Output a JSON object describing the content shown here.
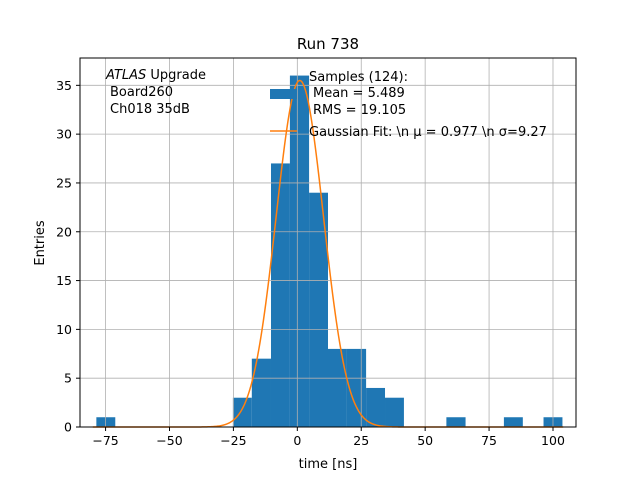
{
  "chart_data": {
    "type": "bar",
    "title": "Run 738",
    "xlabel": "time [ns]",
    "ylabel": "Entries",
    "xlim": [
      -85,
      109
    ],
    "ylim": [
      0,
      37.8
    ],
    "grid": true,
    "xticks": [
      -75,
      -50,
      -25,
      0,
      25,
      50,
      75,
      100
    ],
    "yticks": [
      0,
      5,
      10,
      15,
      20,
      25,
      30,
      35
    ],
    "xtick_labels": [
      "−75",
      "−50",
      "−25",
      "0",
      "25",
      "50",
      "75",
      "100"
    ],
    "ytick_labels": [
      "0",
      "5",
      "10",
      "15",
      "20",
      "25",
      "30",
      "35"
    ],
    "annotation": {
      "prefix": "ATLAS",
      "suffix": " Upgrade",
      "line2": "Board260",
      "line3": "Ch018 35dB"
    },
    "legend": {
      "placement": "top-right",
      "histogram_lines": [
        "Samples (124):",
        "Mean = 5.489",
        "RMS = 19.105"
      ],
      "fit_label": "Gaussian Fit: \\n μ = 0.977 \\n σ=9.27"
    },
    "histogram": {
      "name": "Samples",
      "color": "#1f77b4",
      "bins": [
        {
          "x0": -78.6,
          "x1": -71.2,
          "count": 1
        },
        {
          "x0": -25.2,
          "x1": -17.8,
          "count": 3
        },
        {
          "x0": -17.8,
          "x1": -10.3,
          "count": 7
        },
        {
          "x0": -10.3,
          "x1": -2.9,
          "count": 27
        },
        {
          "x0": -2.9,
          "x1": 4.6,
          "count": 36
        },
        {
          "x0": 4.6,
          "x1": 12.0,
          "count": 24
        },
        {
          "x0": 12.0,
          "x1": 19.4,
          "count": 8
        },
        {
          "x0": 19.4,
          "x1": 26.9,
          "count": 8
        },
        {
          "x0": 26.9,
          "x1": 34.3,
          "count": 4
        },
        {
          "x0": 34.3,
          "x1": 41.7,
          "count": 3
        },
        {
          "x0": 58.3,
          "x1": 65.8,
          "count": 1
        },
        {
          "x0": 80.8,
          "x1": 88.2,
          "count": 1
        },
        {
          "x0": 96.3,
          "x1": 103.7,
          "count": 1
        }
      ]
    },
    "fit": {
      "name": "Gaussian Fit",
      "color": "#ff7f0e",
      "mu": 0.977,
      "sigma": 9.27,
      "amplitude": 35.5,
      "x_range": [
        -80,
        104
      ]
    }
  }
}
